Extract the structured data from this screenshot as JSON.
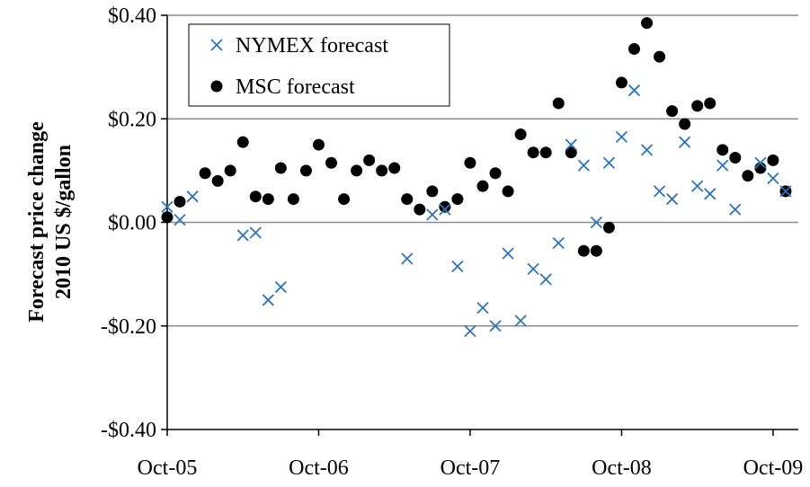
{
  "chart_data": {
    "type": "scatter",
    "ylabel_line1": "Forecast price change",
    "ylabel_line2": "2010 US $/gallon",
    "ylim": [
      -0.4,
      0.4
    ],
    "xlim": [
      "2005-10",
      "2009-12"
    ],
    "y_ticks": [
      {
        "value": 0.4,
        "label": "$0.40"
      },
      {
        "value": 0.2,
        "label": "$0.20"
      },
      {
        "value": 0.0,
        "label": "$0.00"
      },
      {
        "value": -0.2,
        "label": "-$0.20"
      },
      {
        "value": -0.4,
        "label": "-$0.40"
      }
    ],
    "x_ticks": [
      {
        "value": "2005-10",
        "label": "Oct-05"
      },
      {
        "value": "2006-10",
        "label": "Oct-06"
      },
      {
        "value": "2007-10",
        "label": "Oct-07"
      },
      {
        "value": "2008-10",
        "label": "Oct-08"
      },
      {
        "value": "2009-10",
        "label": "Oct-09"
      }
    ],
    "gridlines": "horizontal",
    "legend_position": "top-left",
    "series": [
      {
        "name": "NYMEX forecast",
        "marker": "x",
        "color": "#2E75B6",
        "points": [
          [
            "2005-10",
            0.03
          ],
          [
            "2005-11",
            0.005
          ],
          [
            "2005-12",
            0.05
          ],
          [
            "2006-04",
            -0.025
          ],
          [
            "2006-05",
            -0.02
          ],
          [
            "2006-06",
            -0.15
          ],
          [
            "2006-07",
            -0.125
          ],
          [
            "2007-05",
            -0.07
          ],
          [
            "2007-07",
            0.015
          ],
          [
            "2007-08",
            0.025
          ],
          [
            "2007-09",
            -0.085
          ],
          [
            "2007-10",
            -0.21
          ],
          [
            "2007-11",
            -0.165
          ],
          [
            "2007-12",
            -0.2
          ],
          [
            "2008-01",
            -0.06
          ],
          [
            "2008-02",
            -0.19
          ],
          [
            "2008-03",
            -0.09
          ],
          [
            "2008-04",
            -0.11
          ],
          [
            "2008-05",
            -0.04
          ],
          [
            "2008-06",
            0.15
          ],
          [
            "2008-07",
            0.11
          ],
          [
            "2008-08",
            0.0
          ],
          [
            "2008-09",
            0.115
          ],
          [
            "2008-10",
            0.165
          ],
          [
            "2008-11",
            0.255
          ],
          [
            "2008-12",
            0.14
          ],
          [
            "2009-01",
            0.06
          ],
          [
            "2009-02",
            0.045
          ],
          [
            "2009-03",
            0.155
          ],
          [
            "2009-04",
            0.07
          ],
          [
            "2009-05",
            0.055
          ],
          [
            "2009-06",
            0.11
          ],
          [
            "2009-07",
            0.025
          ],
          [
            "2009-09",
            0.115
          ],
          [
            "2009-10",
            0.085
          ],
          [
            "2009-11",
            0.06
          ]
        ]
      },
      {
        "name": "MSC forecast",
        "marker": "circle",
        "color": "#000000",
        "points": [
          [
            "2005-10",
            0.01
          ],
          [
            "2005-11",
            0.04
          ],
          [
            "2006-01",
            0.095
          ],
          [
            "2006-02",
            0.08
          ],
          [
            "2006-03",
            0.1
          ],
          [
            "2006-04",
            0.155
          ],
          [
            "2006-05",
            0.05
          ],
          [
            "2006-06",
            0.045
          ],
          [
            "2006-07",
            0.105
          ],
          [
            "2006-08",
            0.045
          ],
          [
            "2006-09",
            0.1
          ],
          [
            "2006-10",
            0.15
          ],
          [
            "2006-11",
            0.115
          ],
          [
            "2006-12",
            0.045
          ],
          [
            "2007-01",
            0.1
          ],
          [
            "2007-02",
            0.12
          ],
          [
            "2007-03",
            0.1
          ],
          [
            "2007-04",
            0.105
          ],
          [
            "2007-05",
            0.045
          ],
          [
            "2007-06",
            0.025
          ],
          [
            "2007-07",
            0.06
          ],
          [
            "2007-08",
            0.03
          ],
          [
            "2007-09",
            0.045
          ],
          [
            "2007-10",
            0.115
          ],
          [
            "2007-11",
            0.07
          ],
          [
            "2007-12",
            0.095
          ],
          [
            "2008-01",
            0.06
          ],
          [
            "2008-02",
            0.17
          ],
          [
            "2008-03",
            0.135
          ],
          [
            "2008-04",
            0.135
          ],
          [
            "2008-05",
            0.23
          ],
          [
            "2008-06",
            0.135
          ],
          [
            "2008-07",
            -0.055
          ],
          [
            "2008-08",
            -0.055
          ],
          [
            "2008-09",
            -0.01
          ],
          [
            "2008-10",
            0.27
          ],
          [
            "2008-11",
            0.335
          ],
          [
            "2008-12",
            0.385
          ],
          [
            "2009-01",
            0.32
          ],
          [
            "2009-02",
            0.215
          ],
          [
            "2009-03",
            0.19
          ],
          [
            "2009-04",
            0.225
          ],
          [
            "2009-05",
            0.23
          ],
          [
            "2009-06",
            0.14
          ],
          [
            "2009-07",
            0.125
          ],
          [
            "2009-08",
            0.09
          ],
          [
            "2009-09",
            0.105
          ],
          [
            "2009-10",
            0.12
          ],
          [
            "2009-11",
            0.06
          ]
        ]
      }
    ]
  }
}
